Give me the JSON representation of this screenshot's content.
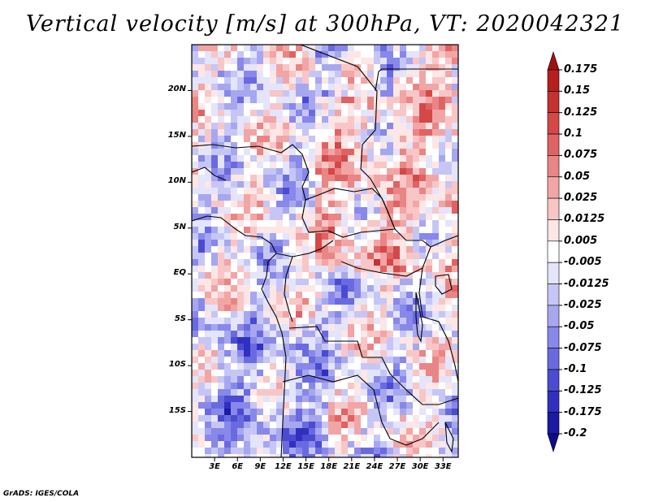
{
  "title": "Vertical velocity [m/s] at 300hPa, VT: 2020042321",
  "credit": "GrADS: IGES/COLA",
  "map": {
    "lat_labels": [
      "20N",
      "15N",
      "10N",
      "5N",
      "EQ",
      "5S",
      "10S",
      "15S"
    ],
    "lat_values": [
      20,
      15,
      10,
      5,
      0,
      -5,
      -10,
      -15
    ],
    "lon_labels": [
      "3E",
      "6E",
      "9E",
      "12E",
      "15E",
      "18E",
      "21E",
      "24E",
      "27E",
      "30E",
      "33E"
    ],
    "lon_values": [
      3,
      6,
      9,
      12,
      15,
      18,
      21,
      24,
      27,
      30,
      33
    ],
    "lon_range": [
      0,
      35
    ],
    "lat_range": [
      -20,
      25
    ]
  },
  "colorbar": {
    "labels": [
      "0.175",
      "0.15",
      "0.125",
      "0.1",
      "0.075",
      "0.05",
      "0.025",
      "0.0125",
      "0.005",
      "-0.005",
      "-0.0125",
      "-0.025",
      "-0.05",
      "-0.075",
      "-0.1",
      "-0.125",
      "-0.175",
      "-0.2"
    ],
    "colors": [
      "#a01010",
      "#b51f1f",
      "#c63131",
      "#d44848",
      "#e06363",
      "#ea8585",
      "#f2a5a5",
      "#f8c6c6",
      "#fde6e6",
      "#ffffff",
      "#e4e4fb",
      "#c6c6f6",
      "#a7a7f0",
      "#8888ea",
      "#6a6ae0",
      "#4b4bd2",
      "#3030c0",
      "#1a1aa5",
      "#0d0d88"
    ]
  }
}
